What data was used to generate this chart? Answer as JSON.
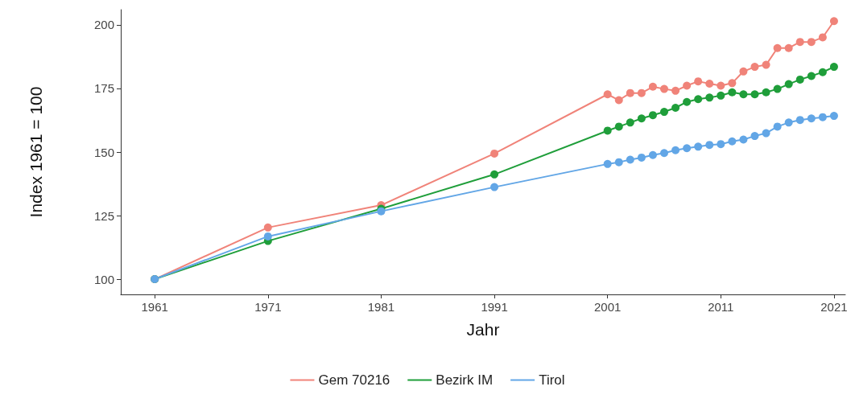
{
  "chart_data": {
    "type": "line",
    "xlabel": "Jahr",
    "ylabel": "Index 1961 = 100",
    "x": [
      1961,
      1971,
      1981,
      1991,
      2001,
      2002,
      2003,
      2004,
      2005,
      2006,
      2007,
      2008,
      2009,
      2010,
      2011,
      2012,
      2013,
      2014,
      2015,
      2016,
      2017,
      2018,
      2019,
      2020,
      2021
    ],
    "series": [
      {
        "name": "Gem 70216",
        "color": "#f08379",
        "values": [
          100,
          120.3,
          129.1,
          149.4,
          172.7,
          170.4,
          173.2,
          173.2,
          175.7,
          174.8,
          174.1,
          176.1,
          177.8,
          176.9,
          176.1,
          177.1,
          181.7,
          183.5,
          184.3,
          190.9,
          190.9,
          193.3,
          193.3,
          195.1,
          201.5
        ]
      },
      {
        "name": "Bezirk IM",
        "color": "#1f9e3a",
        "values": [
          100,
          115,
          127.7,
          141.2,
          158.4,
          160,
          161.6,
          163.2,
          164.5,
          165.8,
          167.4,
          169.7,
          170.8,
          171.4,
          172.2,
          173.5,
          172.7,
          172.7,
          173.5,
          174.8,
          176.7,
          178.5,
          179.9,
          181.4,
          183.5
        ]
      },
      {
        "name": "Tirol",
        "color": "#62a6e6",
        "values": [
          100,
          116.8,
          126.7,
          136.2,
          145.3,
          146,
          147,
          147.8,
          148.8,
          149.6,
          150.7,
          151.5,
          152.1,
          152.8,
          153.1,
          154.2,
          154.9,
          156.3,
          157.4,
          160,
          161.6,
          162.6,
          163.2,
          163.7,
          164.2
        ]
      }
    ],
    "xlim": [
      1958,
      2022
    ],
    "xticks": [
      1961,
      1971,
      1981,
      1991,
      2001,
      2011,
      2021
    ],
    "ylim": [
      94,
      206
    ],
    "yticks": [
      100,
      125,
      150,
      175,
      200
    ],
    "grid": false,
    "legend": "bottom",
    "marker": "circle",
    "line_style": "solid"
  }
}
